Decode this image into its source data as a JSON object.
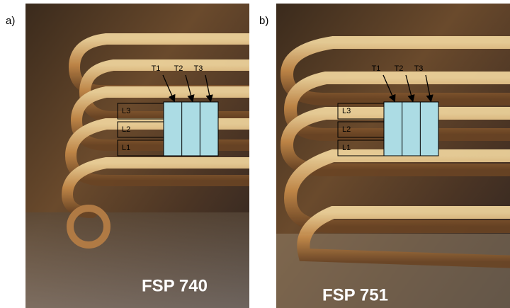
{
  "panels": [
    {
      "label": "a)",
      "caption": "FSP 740",
      "transverse": [
        "T1",
        "T2",
        "T3"
      ],
      "longitudinal": [
        "L3",
        "L2",
        "L1"
      ]
    },
    {
      "label": "b)",
      "caption": "FSP 751",
      "transverse": [
        "T1",
        "T2",
        "T3"
      ],
      "longitudinal": [
        "L3",
        "L2",
        "L1"
      ]
    }
  ]
}
